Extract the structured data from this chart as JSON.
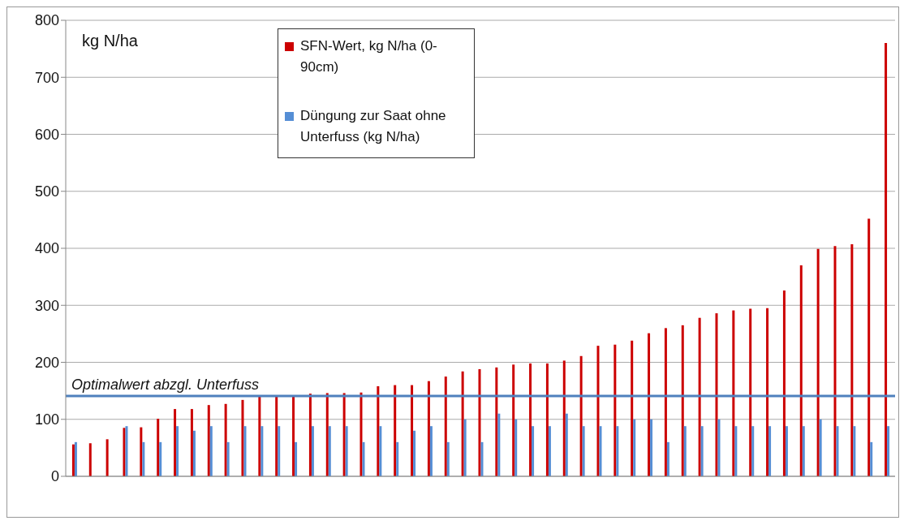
{
  "chart_data": {
    "type": "bar",
    "ylabel": "kg N/ha",
    "categories": [
      null,
      null,
      null,
      null,
      null,
      null,
      null,
      null,
      null,
      null,
      null,
      null,
      null,
      null,
      null,
      null,
      null,
      null,
      null,
      null,
      null,
      null,
      null,
      null,
      null,
      null,
      null,
      null,
      null,
      null,
      null,
      null,
      null,
      null,
      null,
      null,
      null,
      null,
      null,
      null,
      null,
      null,
      null,
      null,
      null,
      null,
      null,
      null,
      null
    ],
    "series": [
      {
        "name": "SFN-Wert, kg N/ha (0-90cm)",
        "color": "#cc0000",
        "values": [
          56,
          58,
          65,
          85,
          86,
          101,
          118,
          118,
          125,
          127,
          134,
          140,
          140,
          140,
          145,
          146,
          146,
          147,
          158,
          160,
          160,
          167,
          175,
          184,
          188,
          191,
          196,
          198,
          198,
          203,
          211,
          229,
          231,
          238,
          251,
          260,
          265,
          278,
          286,
          291,
          294,
          295,
          326,
          370,
          399,
          404,
          407,
          452,
          760
        ]
      },
      {
        "name": "Düngung zur Saat ohne Unterfuss (kg N/ha)",
        "color": "#558ed5",
        "values": [
          60,
          null,
          null,
          88,
          60,
          60,
          88,
          80,
          88,
          60,
          88,
          88,
          88,
          60,
          88,
          88,
          88,
          60,
          88,
          60,
          80,
          88,
          60,
          100,
          60,
          110,
          100,
          88,
          88,
          110,
          88,
          88,
          88,
          100,
          100,
          60,
          88,
          88,
          100,
          88,
          88,
          88,
          88,
          88,
          100,
          88,
          88,
          60,
          88
        ]
      }
    ],
    "ylim": [
      0,
      800
    ],
    "yticks": [
      0,
      100,
      200,
      300,
      400,
      500,
      600,
      700,
      800
    ],
    "grid": "y",
    "legend": "top",
    "ref_lines": [
      {
        "axis": "y",
        "value": 141,
        "label": "Optimalwert abzgl. Unterfuss",
        "color": "#4f81bd"
      }
    ]
  }
}
